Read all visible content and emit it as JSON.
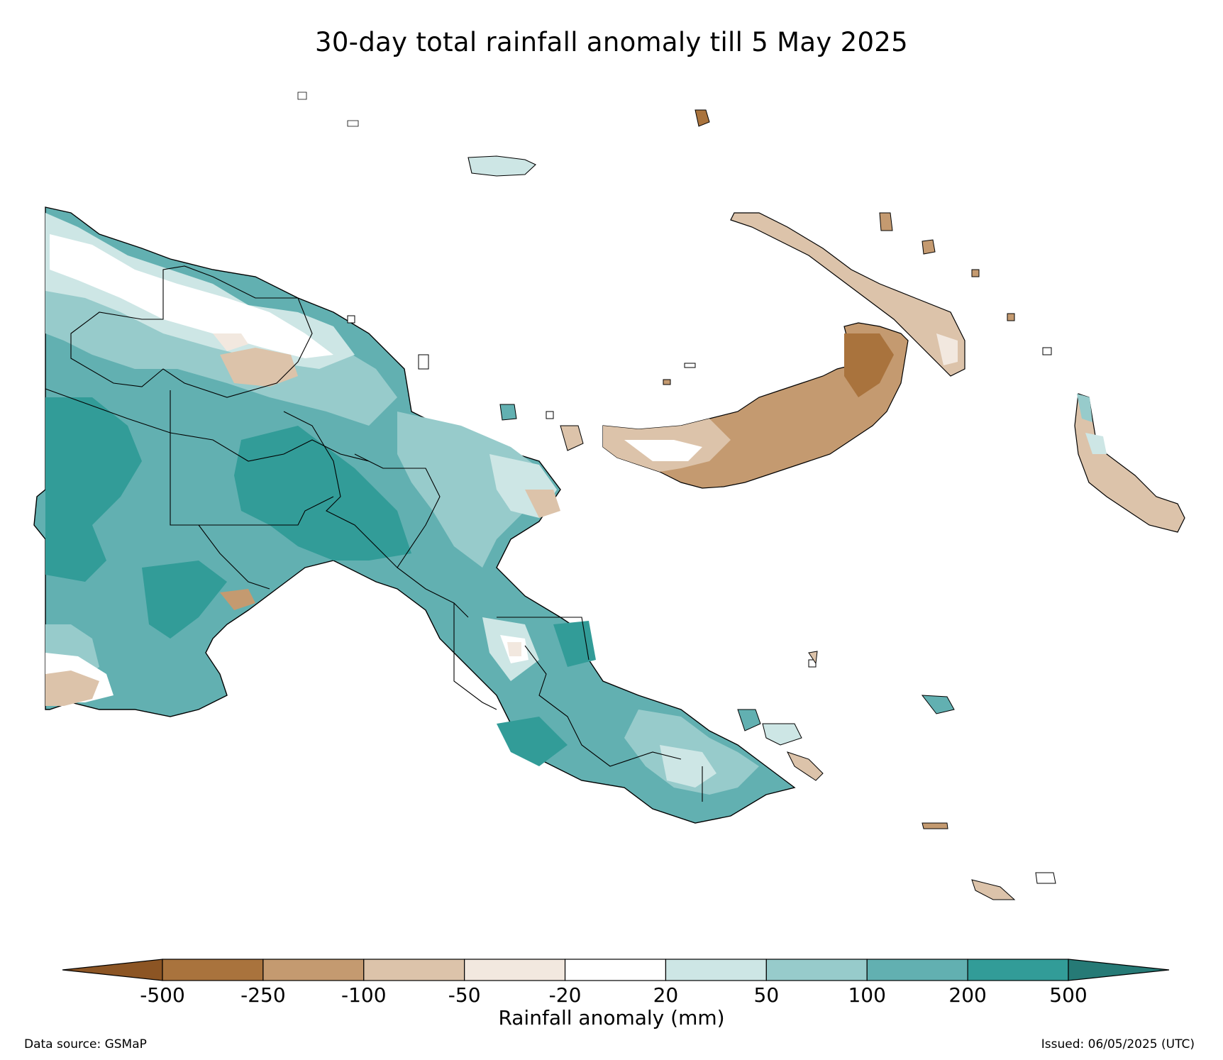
{
  "title": "30-day total rainfall anomaly till 5 May 2025",
  "colorbar": {
    "label": "Rainfall anomaly (mm)",
    "ticks": [
      "-500",
      "-250",
      "-100",
      "-50",
      "-20",
      "20",
      "50",
      "100",
      "200",
      "500"
    ],
    "colors": {
      "lt_-500": "#8c5524",
      "-500_-250": "#a9733d",
      "-250_-100": "#c49a70",
      "-100_-50": "#dcc3aa",
      "-50_-20": "#f2e8df",
      "-20_20": "#ffffff",
      "20_50": "#cde6e5",
      "50_100": "#97cbcb",
      "100_200": "#62b0b1",
      "200_500": "#329c98",
      "gt_500": "#267a76"
    }
  },
  "footer": {
    "source": "Data source: GSMaP",
    "issued": "Issued: 06/05/2025 (UTC)"
  }
}
